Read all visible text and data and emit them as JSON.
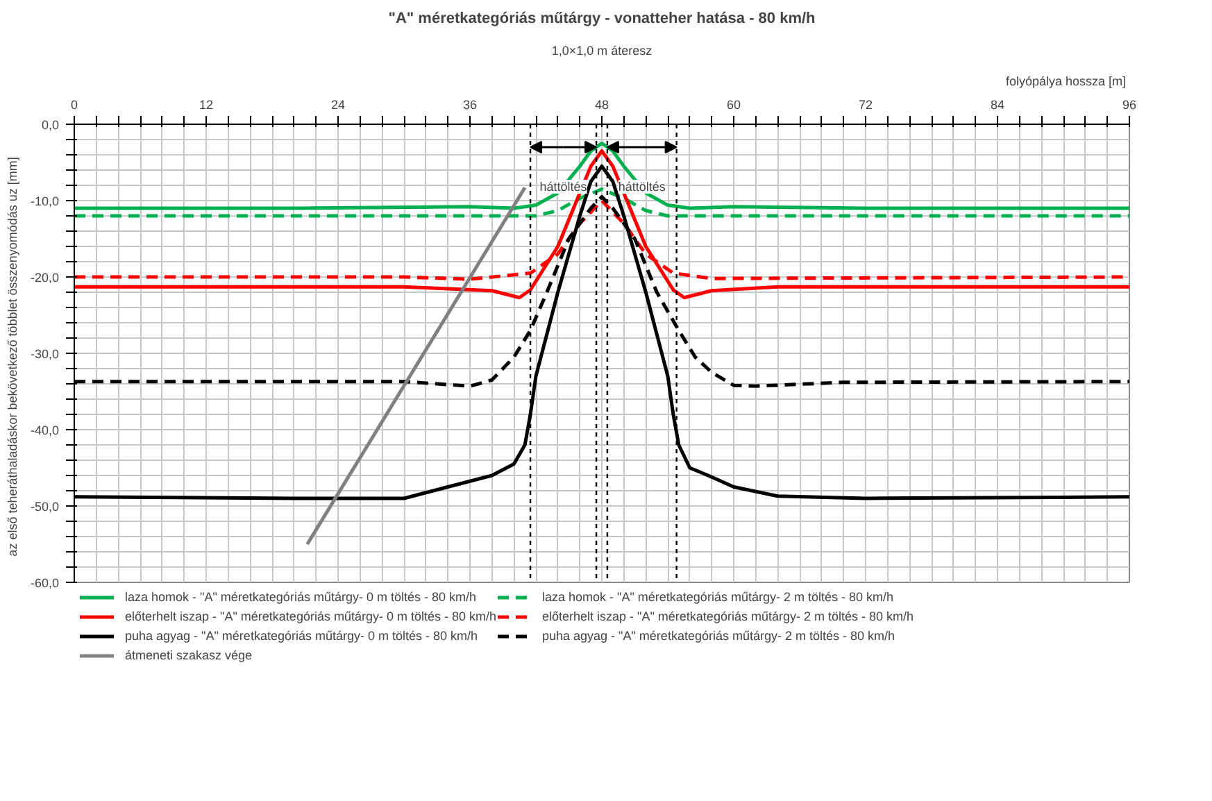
{
  "chart_data": {
    "type": "line",
    "title": "\"A\" méretkategóriás műtárgy - vonatteher hatása - 80 km/h",
    "xlabel": "folyópálya hossza  [m]",
    "ylabel": "az első teheráthaladáskor bekövetkező többlet összenyomódás  uz  [mm]",
    "xlim": [
      0,
      96
    ],
    "ylim": [
      -60,
      0
    ],
    "xticks": [
      0,
      {
        "value": 2,
        "label": null
      },
      {
        "value": 4,
        "label": null
      },
      {
        "value": 6,
        "label": null
      },
      {
        "value": 8,
        "label": null
      },
      {
        "value": 10,
        "label": null
      },
      12,
      {
        "value": 14,
        "label": null
      },
      {
        "value": 16,
        "label": null
      },
      {
        "value": 18,
        "label": null
      },
      {
        "value": 20,
        "label": null
      },
      {
        "value": 22,
        "label": null
      },
      24,
      {
        "value": 26,
        "label": null
      },
      {
        "value": 28,
        "label": null
      },
      {
        "value": 30,
        "label": null
      },
      {
        "value": 32,
        "label": null
      },
      {
        "value": 34,
        "label": null
      },
      36,
      {
        "value": 38,
        "label": null
      },
      {
        "value": 40,
        "label": null
      },
      {
        "value": 42,
        "label": null
      },
      {
        "value": 44,
        "label": null
      },
      {
        "value": 46,
        "label": null
      },
      48,
      {
        "value": 50,
        "label": null
      },
      {
        "value": 52,
        "label": null
      },
      {
        "value": 54,
        "label": null
      },
      {
        "value": 56,
        "label": null
      },
      {
        "value": 58,
        "label": null
      },
      60,
      {
        "value": 62,
        "label": null
      },
      {
        "value": 64,
        "label": null
      },
      {
        "value": 66,
        "label": null
      },
      {
        "value": 68,
        "label": null
      },
      {
        "value": 70,
        "label": null
      },
      72,
      {
        "value": 74,
        "label": null
      },
      {
        "value": 76,
        "label": null
      },
      {
        "value": 78,
        "label": null
      },
      {
        "value": 80,
        "label": null
      },
      {
        "value": 82,
        "label": null
      },
      84,
      {
        "value": 86,
        "label": null
      },
      {
        "value": 88,
        "label": null
      },
      {
        "value": 90,
        "label": null
      },
      {
        "value": 92,
        "label": null
      },
      {
        "value": 94,
        "label": null
      },
      96
    ],
    "yticks": [
      {
        "value": 0,
        "label": "0,0"
      },
      {
        "value": -2,
        "label": null
      },
      {
        "value": -4,
        "label": null
      },
      {
        "value": -6,
        "label": null
      },
      {
        "value": -8,
        "label": null
      },
      {
        "value": -10,
        "label": "-10,0"
      },
      {
        "value": -12,
        "label": null
      },
      {
        "value": -14,
        "label": null
      },
      {
        "value": -16,
        "label": null
      },
      {
        "value": -18,
        "label": null
      },
      {
        "value": -20,
        "label": "-20,0"
      },
      {
        "value": -22,
        "label": null
      },
      {
        "value": -24,
        "label": null
      },
      {
        "value": -26,
        "label": null
      },
      {
        "value": -28,
        "label": null
      },
      {
        "value": -30,
        "label": "-30,0"
      },
      {
        "value": -32,
        "label": null
      },
      {
        "value": -34,
        "label": null
      },
      {
        "value": -36,
        "label": null
      },
      {
        "value": -38,
        "label": null
      },
      {
        "value": -40,
        "label": "-40,0"
      },
      {
        "value": -42,
        "label": null
      },
      {
        "value": -44,
        "label": null
      },
      {
        "value": -46,
        "label": null
      },
      {
        "value": -48,
        "label": null
      },
      {
        "value": -50,
        "label": "-50,0"
      },
      {
        "value": -52,
        "label": null
      },
      {
        "value": -54,
        "label": null
      },
      {
        "value": -56,
        "label": null
      },
      {
        "value": -58,
        "label": null
      },
      {
        "value": -60,
        "label": "-60,0"
      }
    ],
    "grid": true,
    "legend": "bottom",
    "marker": "none",
    "series": [
      {
        "name": "laza homok - \"A\" méretkategóriás műtárgy- 0 m töltés - 80 km/h",
        "color": "#00b050",
        "line_style": "solid",
        "x": [
          0,
          20,
          36,
          40,
          42,
          44,
          46,
          47,
          48,
          49,
          50,
          52,
          54,
          56,
          60,
          72,
          96
        ],
        "values": [
          -11.0,
          -11.0,
          -10.8,
          -11.0,
          -10.6,
          -9.0,
          -5.5,
          -3.5,
          -2.5,
          -3.5,
          -5.5,
          -9.0,
          -10.6,
          -11.0,
          -10.8,
          -11.0,
          -11.0
        ]
      },
      {
        "name": "laza homok - \"A\" méretkategóriás műtárgy- 2 m töltés - 80 km/h",
        "color": "#00b050",
        "line_style": "dashed",
        "x": [
          0,
          42,
          44,
          46,
          48,
          50,
          52,
          54,
          96
        ],
        "values": [
          -12.0,
          -12.0,
          -11.3,
          -9.7,
          -8.5,
          -9.7,
          -11.3,
          -12.0,
          -12.0
        ]
      },
      {
        "name": "előterhelt iszap - \"A\" méretkategóriás műtárgy- 0 m töltés - 80 km/h",
        "color": "#ff0000",
        "line_style": "solid",
        "x": [
          0,
          30,
          38,
          40.5,
          41.5,
          44,
          46,
          47,
          48,
          49,
          50,
          52,
          54.5,
          55.5,
          58,
          64,
          96
        ],
        "values": [
          -21.3,
          -21.3,
          -21.8,
          -22.7,
          -21.7,
          -16.0,
          -9.0,
          -5.5,
          -3.5,
          -5.5,
          -9.0,
          -16.0,
          -21.7,
          -22.7,
          -21.8,
          -21.3,
          -21.3
        ]
      },
      {
        "name": "előterhelt iszap - \"A\" méretkategóriás műtárgy- 2 m töltés - 80 km/h",
        "color": "#ff0000",
        "line_style": "dashed",
        "x": [
          0,
          30,
          36,
          41.5,
          44,
          46,
          48,
          50,
          52,
          54.5,
          58,
          96
        ],
        "values": [
          -20.0,
          -20.0,
          -20.3,
          -19.5,
          -17.0,
          -13.0,
          -10.0,
          -13.0,
          -17.0,
          -19.5,
          -20.2,
          -20.0
        ]
      },
      {
        "name": "puha agyag - \"A\" méretkategóriás műtárgy- 0 m töltés - 80 km/h",
        "color": "#000000",
        "line_style": "solid",
        "x": [
          0,
          20,
          30,
          34,
          38,
          40,
          41,
          41.5,
          42,
          44,
          46,
          47,
          48,
          49,
          50,
          52,
          54,
          54.5,
          55,
          56,
          58,
          60,
          64,
          72,
          96
        ],
        "values": [
          -48.8,
          -49.0,
          -49.0,
          -47.5,
          -46.0,
          -44.5,
          -42.0,
          -38.0,
          -33.0,
          -22.0,
          -12.0,
          -7.5,
          -5.5,
          -7.5,
          -12.0,
          -22.0,
          -33.0,
          -38.0,
          -42.0,
          -45.0,
          -46.2,
          -47.5,
          -48.7,
          -49.0,
          -48.8
        ]
      },
      {
        "name": "puha agyag - \"A\" méretkategóriás műtárgy- 2 m töltés - 80 km/h",
        "color": "#000000",
        "line_style": "dashed",
        "x": [
          0,
          30,
          36,
          38,
          40,
          41.5,
          43,
          45,
          47,
          48,
          49,
          51,
          53,
          55,
          56.5,
          58,
          60,
          62,
          70,
          96
        ],
        "values": [
          -33.7,
          -33.7,
          -34.3,
          -33.5,
          -30.5,
          -27.0,
          -22.0,
          -15.0,
          -11.0,
          -9.5,
          -11.0,
          -15.0,
          -22.0,
          -27.0,
          -30.5,
          -32.5,
          -34.2,
          -34.3,
          -33.8,
          -33.7
        ]
      },
      {
        "name": "átmeneti szakasz vége",
        "color": "#808080",
        "line_style": "solid",
        "x": [
          21.2,
          41.0
        ],
        "values": [
          -55.0,
          -8.3
        ]
      }
    ],
    "ref_lines": [
      {
        "axis": "x",
        "value": 41.5,
        "line_style": "dotted",
        "color": "#000000"
      },
      {
        "axis": "x",
        "value": 47.5,
        "line_style": "dotted",
        "color": "#000000"
      },
      {
        "axis": "x",
        "value": 48.5,
        "line_style": "dotted",
        "color": "#000000"
      },
      {
        "axis": "x",
        "value": 54.8,
        "line_style": "dotted",
        "color": "#000000"
      }
    ],
    "annotations": [
      "háttöltés",
      "háttöltés",
      "1,0×1,0 m áteresz"
    ]
  }
}
